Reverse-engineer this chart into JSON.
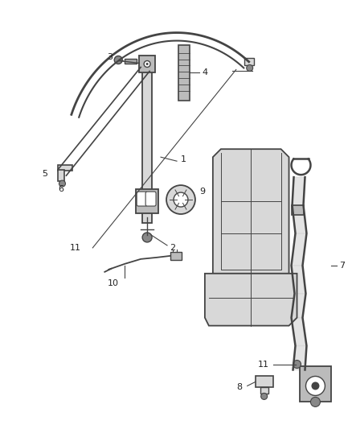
{
  "bg_color": "#ffffff",
  "line_color": "#444444",
  "label_color": "#222222",
  "fill_light": "#d8d8d8",
  "fill_mid": "#bbbbbb",
  "fig_width": 4.38,
  "fig_height": 5.33,
  "dpi": 100
}
